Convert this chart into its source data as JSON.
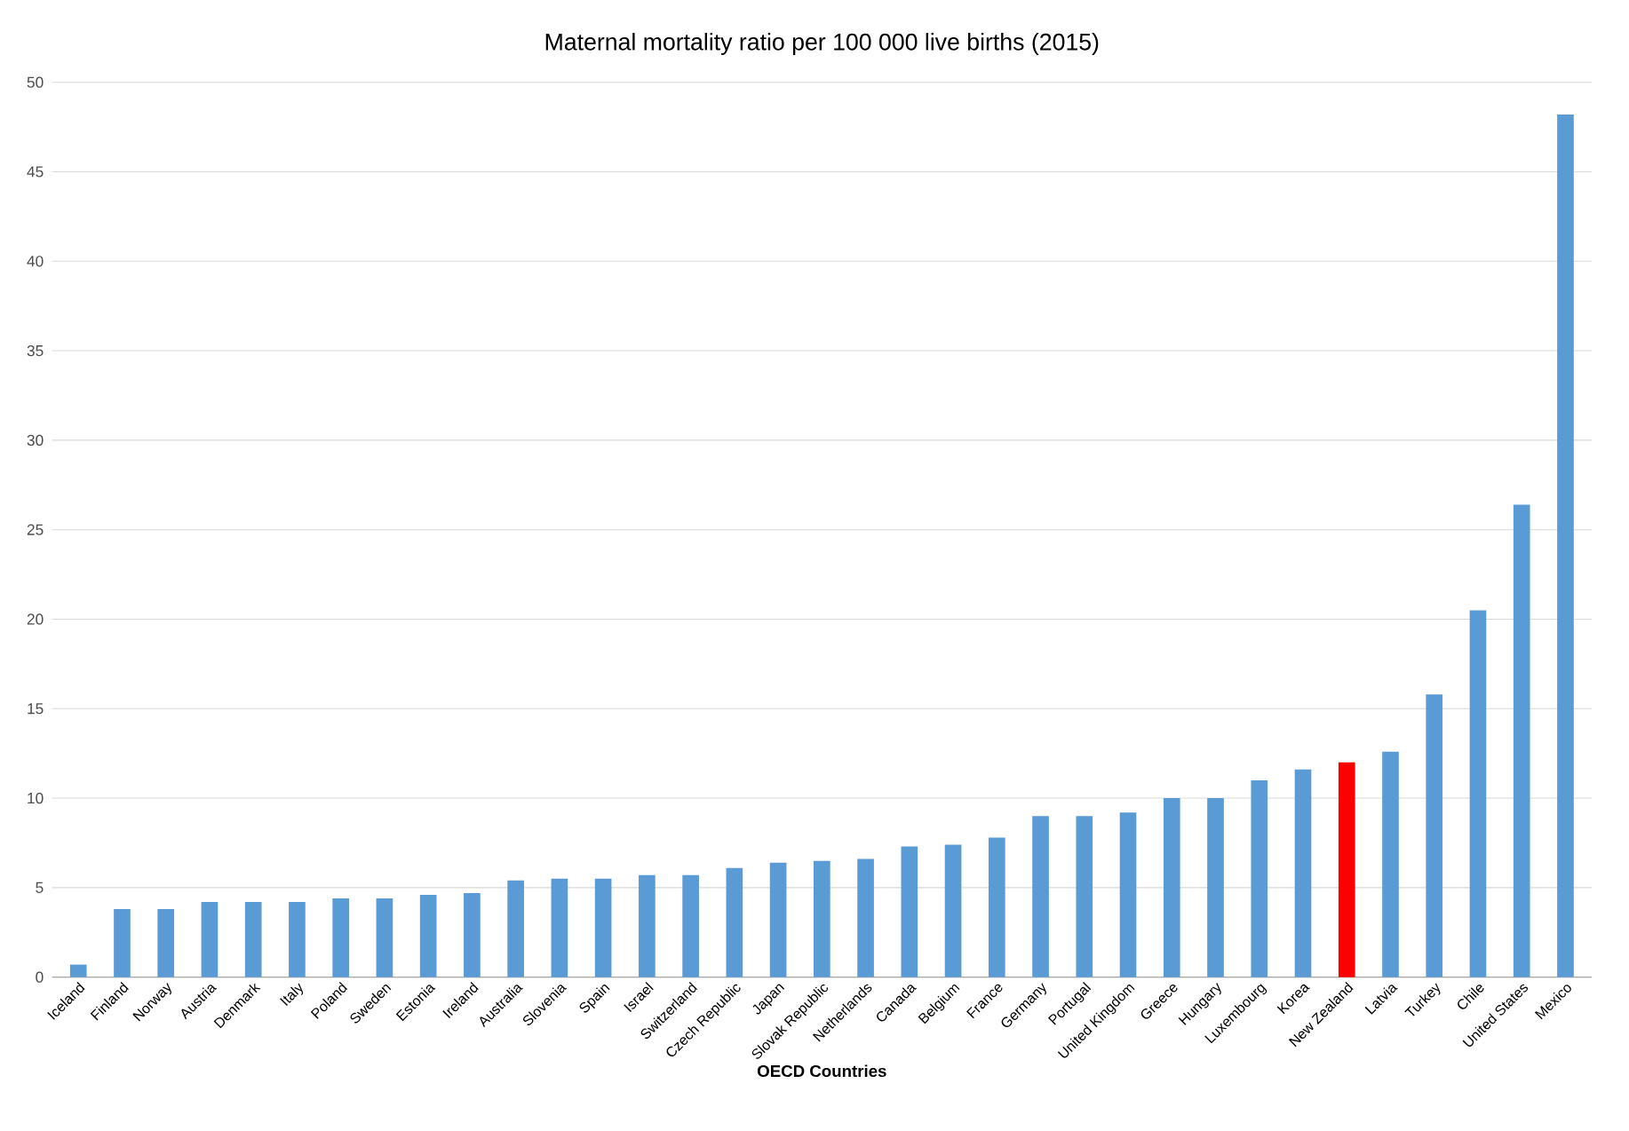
{
  "chart_data": {
    "type": "bar",
    "title": "Maternal mortality ratio per 100 000 live births (2015)",
    "xlabel": "**OECD Countries**",
    "categories": [
      "Iceland",
      "Finland",
      "Norway",
      "Austria",
      "Denmark",
      "Italy",
      "Poland",
      "Sweden",
      "Estonia",
      "Ireland",
      "Australia",
      "Slovenia",
      "Spain",
      "Israel",
      "Switzerland",
      "Czech Republic",
      "Japan",
      "Slovak Republic",
      "Netherlands",
      "Canada",
      "Belgium",
      "France",
      "Germany",
      "Portugal",
      "United Kingdom",
      "Greece",
      "Hungary",
      "Luxembourg",
      "Korea",
      "New Zealand",
      "Latvia",
      "Turkey",
      "Chile",
      "United States",
      "Mexico"
    ],
    "values": [
      0.7,
      3.8,
      3.8,
      4.2,
      4.2,
      4.2,
      4.4,
      4.4,
      4.6,
      4.7,
      5.4,
      5.5,
      5.5,
      5.7,
      5.7,
      6.1,
      6.4,
      6.5,
      6.6,
      7.3,
      7.4,
      7.8,
      9.0,
      9.0,
      9.2,
      10.0,
      10.0,
      11.0,
      11.6,
      12.0,
      12.6,
      15.8,
      20.5,
      26.4,
      48.2
    ],
    "colors": [
      "#5b9bd5",
      "#5b9bd5",
      "#5b9bd5",
      "#5b9bd5",
      "#5b9bd5",
      "#5b9bd5",
      "#5b9bd5",
      "#5b9bd5",
      "#5b9bd5",
      "#5b9bd5",
      "#5b9bd5",
      "#5b9bd5",
      "#5b9bd5",
      "#5b9bd5",
      "#5b9bd5",
      "#5b9bd5",
      "#5b9bd5",
      "#5b9bd5",
      "#5b9bd5",
      "#5b9bd5",
      "#5b9bd5",
      "#5b9bd5",
      "#5b9bd5",
      "#5b9bd5",
      "#5b9bd5",
      "#5b9bd5",
      "#5b9bd5",
      "#5b9bd5",
      "#5b9bd5",
      "#ff0000",
      "#5b9bd5",
      "#5b9bd5",
      "#5b9bd5",
      "#5b9bd5",
      "#5b9bd5"
    ],
    "ylim": [
      0,
      50
    ],
    "yticks": [
      0,
      5,
      10,
      15,
      20,
      25,
      30,
      35,
      40,
      45,
      50
    ],
    "grid": "y"
  }
}
